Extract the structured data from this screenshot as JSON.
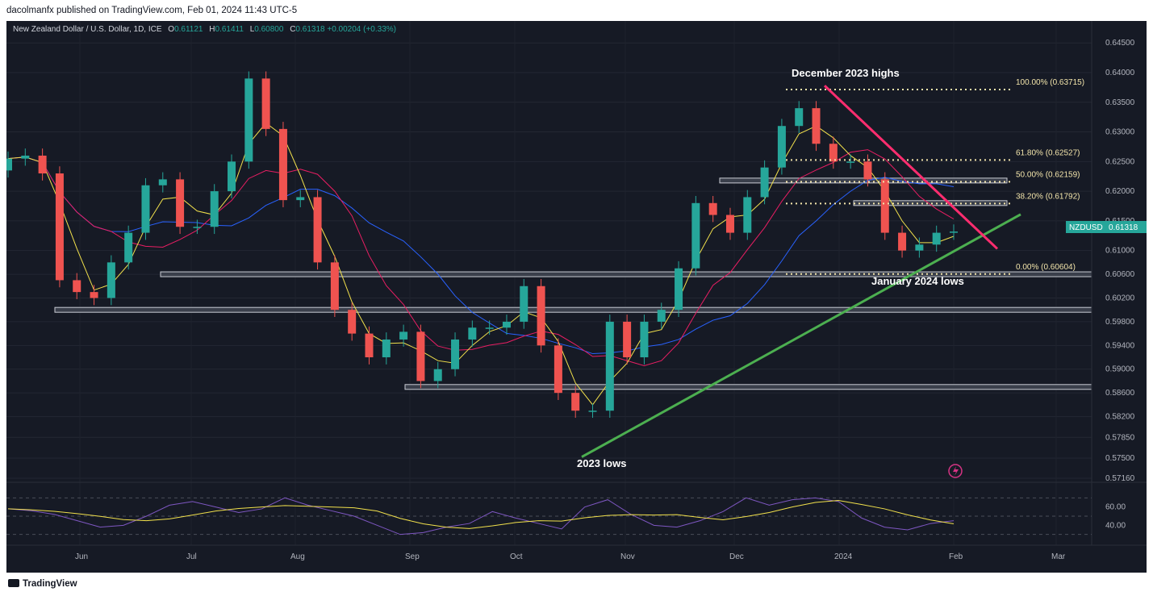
{
  "header": {
    "publisher": "dacolmanfx published on TradingView.com, Feb 01, 2024 11:43 UTC-5"
  },
  "legend": {
    "symbol": "New Zealand Dollar / U.S. Dollar, 1D, ICE",
    "open_label": "O",
    "open": "0.61121",
    "high_label": "H",
    "high": "0.61411",
    "low_label": "L",
    "low": "0.60800",
    "close_label": "C",
    "close": "0.61318",
    "change": "+0.00204 (+0.33%)"
  },
  "price_badge": {
    "symbol": "NZDUSD",
    "value": "0.61318"
  },
  "footer": {
    "brand": "TradingView"
  },
  "colors": {
    "up": "#26a69a",
    "down": "#ef5350",
    "sma50": "#f2e14c",
    "sma100": "#e91e63",
    "sma200": "#2962ff",
    "rsi": "#7e57c2",
    "trend_up": "#4caf50",
    "trend_down": "#ff2d6f"
  },
  "chart_data": {
    "type": "candlestick",
    "symbol": "NZDUSD",
    "timeframe": "1D",
    "x_ticks": [
      "Jun",
      "Jul",
      "Aug",
      "Sep",
      "Oct",
      "Nov",
      "Dec",
      "2024",
      "Feb",
      "Mar"
    ],
    "y_ticks": [
      "0.64500",
      "0.64000",
      "0.63500",
      "0.63000",
      "0.62500",
      "0.62000",
      "0.61500",
      "0.61000",
      "0.60600",
      "0.60200",
      "0.59800",
      "0.59400",
      "0.59000",
      "0.58600",
      "0.58200",
      "0.57850",
      "0.57500",
      "0.57160"
    ],
    "y_tick_values": [
      0.645,
      0.64,
      0.635,
      0.63,
      0.625,
      0.62,
      0.615,
      0.61,
      0.606,
      0.602,
      0.598,
      0.594,
      0.59,
      0.586,
      0.582,
      0.5785,
      0.575,
      0.5716
    ],
    "closes": [
      {
        "d": "May 17",
        "c": 0.6255
      },
      {
        "d": "May 19",
        "c": 0.626
      },
      {
        "d": "May 23",
        "c": 0.623
      },
      {
        "d": "May 25",
        "c": 0.605
      },
      {
        "d": "May 30",
        "c": 0.603
      },
      {
        "d": "Jun 02",
        "c": 0.602
      },
      {
        "d": "Jun 07",
        "c": 0.608
      },
      {
        "d": "Jun 12",
        "c": 0.613
      },
      {
        "d": "Jun 16",
        "c": 0.621
      },
      {
        "d": "Jun 21",
        "c": 0.622
      },
      {
        "d": "Jun 26",
        "c": 0.614
      },
      {
        "d": "Jun 30",
        "c": 0.614
      },
      {
        "d": "Jul 05",
        "c": 0.62
      },
      {
        "d": "Jul 10",
        "c": 0.625
      },
      {
        "d": "Jul 13",
        "c": 0.639
      },
      {
        "d": "Jul 18",
        "c": 0.6305
      },
      {
        "d": "Jul 24",
        "c": 0.6185
      },
      {
        "d": "Jul 28",
        "c": 0.619
      },
      {
        "d": "Aug 03",
        "c": 0.608
      },
      {
        "d": "Aug 09",
        "c": 0.6
      },
      {
        "d": "Aug 15",
        "c": 0.596
      },
      {
        "d": "Aug 21",
        "c": 0.592
      },
      {
        "d": "Aug 25",
        "c": 0.595
      },
      {
        "d": "Aug 31",
        "c": 0.5963
      },
      {
        "d": "Sep 06",
        "c": 0.588
      },
      {
        "d": "Sep 12",
        "c": 0.59
      },
      {
        "d": "Sep 18",
        "c": 0.595
      },
      {
        "d": "Sep 25",
        "c": 0.597
      },
      {
        "d": "Sep 29",
        "c": 0.597
      },
      {
        "d": "Oct 05",
        "c": 0.598
      },
      {
        "d": "Oct 10",
        "c": 0.604
      },
      {
        "d": "Oct 13",
        "c": 0.594
      },
      {
        "d": "Oct 19",
        "c": 0.586
      },
      {
        "d": "Oct 25",
        "c": 0.583
      },
      {
        "d": "Oct 31",
        "c": 0.583
      },
      {
        "d": "Nov 03",
        "c": 0.598
      },
      {
        "d": "Nov 09",
        "c": 0.592
      },
      {
        "d": "Nov 14",
        "c": 0.598
      },
      {
        "d": "Nov 20",
        "c": 0.6
      },
      {
        "d": "Nov 24",
        "c": 0.607
      },
      {
        "d": "Nov 29",
        "c": 0.618
      },
      {
        "d": "Dec 04",
        "c": 0.616
      },
      {
        "d": "Dec 08",
        "c": 0.613
      },
      {
        "d": "Dec 13",
        "c": 0.619
      },
      {
        "d": "Dec 18",
        "c": 0.624
      },
      {
        "d": "Dec 22",
        "c": 0.631
      },
      {
        "d": "Dec 27",
        "c": 0.634
      },
      {
        "d": "Jan 02",
        "c": 0.628
      },
      {
        "d": "Jan 05",
        "c": 0.625
      },
      {
        "d": "Jan 10",
        "c": 0.625
      },
      {
        "d": "Jan 15",
        "c": 0.622
      },
      {
        "d": "Jan 17",
        "c": 0.613
      },
      {
        "d": "Jan 22",
        "c": 0.61
      },
      {
        "d": "Jan 25",
        "c": 0.611
      },
      {
        "d": "Jan 29",
        "c": 0.613
      },
      {
        "d": "Feb 01",
        "c": 0.6132
      }
    ],
    "fibonacci": [
      {
        "label": "100.00% (0.63715)",
        "level": 0.63715
      },
      {
        "label": "61.80% (0.62527)",
        "level": 0.62527
      },
      {
        "label": "50.00% (0.62159)",
        "level": 0.62159
      },
      {
        "label": "38.20% (0.61792)",
        "level": 0.61792
      },
      {
        "label": "0.00% (0.60604)",
        "level": 0.60604
      }
    ],
    "support_zones": [
      0.606,
      0.6,
      0.587,
      0.6218,
      0.618
    ],
    "annotations": [
      "December 2023 highs",
      "January 2024 lows",
      "2023 lows"
    ],
    "rsi": {
      "y_ticks": [
        "60.00",
        "40.00"
      ],
      "values": [
        58,
        56,
        52,
        45,
        38,
        40,
        50,
        62,
        66,
        60,
        54,
        58,
        70,
        62,
        56,
        50,
        40,
        30,
        32,
        38,
        42,
        55,
        48,
        42,
        36,
        60,
        68,
        52,
        40,
        38,
        45,
        55,
        70,
        62,
        68,
        70,
        66,
        48,
        38,
        35,
        42,
        45
      ]
    }
  }
}
